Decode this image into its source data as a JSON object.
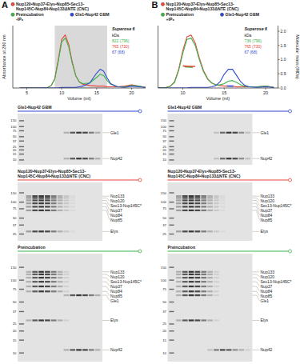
{
  "chart_data": [
    {
      "type": "line",
      "x_label": "Volume (ml)",
      "y_label": "Absorbance at 280 nm",
      "xlim": [
        3,
        22
      ],
      "xticks": [
        5,
        10,
        15,
        20
      ],
      "ylim": [
        0,
        1
      ],
      "shaded_range": [
        9,
        16.5
      ],
      "column": "Superose 6",
      "mass_table": {
        "header": "kDa",
        "rows": [
          {
            "label": "822 (796)",
            "color": "#3cb44b"
          },
          {
            "label": "765 (730)",
            "color": "#e8453c"
          },
          {
            "label": "67 (68)",
            "color": "#2f49d1"
          }
        ]
      },
      "x": [
        4,
        5,
        6,
        7,
        8,
        8.5,
        9,
        9.5,
        10,
        10.5,
        11,
        11.5,
        12,
        12.5,
        13,
        14,
        15,
        15.5,
        16,
        16.5,
        17,
        18,
        19,
        20,
        21,
        22
      ],
      "series": [
        {
          "name": "Nup120•Nup37•Elys•Nup85•Sec13-Nup145C•Nup84•Nup133ΔNTE (CNC)",
          "color": "#e8453c",
          "values": [
            0,
            0,
            0,
            0,
            0.01,
            0.04,
            0.15,
            0.45,
            0.78,
            0.85,
            0.7,
            0.42,
            0.2,
            0.1,
            0.06,
            0.04,
            0.03,
            0.03,
            0.03,
            0.02,
            0.02,
            0.02,
            0.03,
            0.05,
            0.03,
            0.01
          ]
        },
        {
          "name": "Preincubation -IP₆",
          "color": "#3cb44b",
          "values": [
            0,
            0,
            0,
            0,
            0.01,
            0.04,
            0.14,
            0.42,
            0.74,
            0.8,
            0.66,
            0.4,
            0.2,
            0.1,
            0.07,
            0.08,
            0.17,
            0.22,
            0.2,
            0.12,
            0.06,
            0.02,
            0.02,
            0.04,
            0.03,
            0.01
          ]
        },
        {
          "name": "Gle1•Nup42 GBM",
          "color": "#2f49d1",
          "values": [
            0,
            0,
            0,
            0,
            0,
            0,
            0,
            0,
            0.01,
            0.01,
            0.01,
            0.01,
            0.01,
            0.02,
            0.03,
            0.08,
            0.24,
            0.3,
            0.27,
            0.16,
            0.07,
            0.02,
            0.01,
            0.03,
            0.02,
            0.01
          ]
        }
      ]
    },
    {
      "type": "line",
      "x_label": "Volume (ml)",
      "y2_label": "Molecular mass (MDa)",
      "xlim": [
        7,
        21.5
      ],
      "xticks": [
        10,
        15,
        20
      ],
      "ylim": [
        0,
        1
      ],
      "y2lim": [
        0,
        2.2
      ],
      "y2ticks": [
        {
          "value": 0,
          "label": "0.0"
        },
        {
          "value": 0.5,
          "label": "0.5"
        },
        {
          "value": 1,
          "label": "1.0"
        },
        {
          "value": 1.5,
          "label": "1.5"
        },
        {
          "value": 2,
          "label": "2.0"
        }
      ],
      "column": "Superose 6",
      "mass_table": {
        "header": "kDa",
        "rows": [
          {
            "label": "736 (796)",
            "color": "#3cb44b"
          },
          {
            "label": "765 (730)",
            "color": "#e8453c"
          },
          {
            "label": "67 (68)",
            "color": "#2f49d1"
          }
        ]
      },
      "x": [
        7,
        8,
        8.5,
        9,
        9.5,
        10,
        10.5,
        11,
        11.5,
        12,
        12.5,
        13,
        13.5,
        14,
        14.5,
        15,
        15.5,
        16,
        16.5,
        17,
        17.5,
        18,
        19,
        20,
        21
      ],
      "series": [
        {
          "name": "Nup120•Nup37•Elys•Nup85•Sec13-Nup145C•Nup84•Nup133ΔNTE (CNC)",
          "color": "#e8453c",
          "values": [
            0,
            0.01,
            0.03,
            0.1,
            0.3,
            0.6,
            0.82,
            0.85,
            0.72,
            0.48,
            0.28,
            0.15,
            0.08,
            0.05,
            0.04,
            0.03,
            0.03,
            0.03,
            0.02,
            0.02,
            0.02,
            0.02,
            0.02,
            0.03,
            0.01
          ]
        },
        {
          "name": "Preincubation +IP₆",
          "color": "#3cb44b",
          "values": [
            0,
            0.01,
            0.03,
            0.09,
            0.28,
            0.56,
            0.78,
            0.8,
            0.68,
            0.45,
            0.26,
            0.14,
            0.08,
            0.05,
            0.05,
            0.07,
            0.11,
            0.12,
            0.09,
            0.05,
            0.03,
            0.02,
            0.02,
            0.03,
            0.01
          ]
        },
        {
          "name": "Gle1•Nup42 GBM",
          "color": "#2f49d1",
          "values": [
            0,
            0,
            0,
            0,
            0,
            0,
            0,
            0.01,
            0.01,
            0.01,
            0.01,
            0.01,
            0.02,
            0.04,
            0.1,
            0.22,
            0.3,
            0.3,
            0.2,
            0.1,
            0.04,
            0.02,
            0.01,
            0.02,
            0.01
          ]
        }
      ],
      "mass_traces": [
        {
          "color": "#3cb44b",
          "axis": "y2",
          "x": [
            10.2,
            10.7,
            11.2
          ],
          "values": [
            0.75,
            0.74,
            0.73
          ]
        },
        {
          "color": "#e8453c",
          "axis": "y2",
          "x": [
            10,
            10.5,
            11,
            11.5
          ],
          "values": [
            0.78,
            0.77,
            0.76,
            0.76
          ]
        },
        {
          "color": "#2f49d1",
          "axis": "y2",
          "x": [
            15.3,
            15.7,
            16.1
          ],
          "values": [
            0.07,
            0.067,
            0.066
          ]
        }
      ]
    }
  ],
  "panels": [
    {
      "label": "A",
      "gels": [
        {
          "title": "Gle1•Nup42 GBM",
          "color": "#2f49d1",
          "log": true,
          "ylim": [
            8,
            220
          ],
          "yticks": [
            150,
            100,
            75,
            50,
            37,
            25,
            20,
            15,
            10
          ],
          "groups": [
            {
              "intensities": [
                0,
                0,
                0,
                0,
                0,
                0,
                0.3,
                0.8,
                1,
                0.9,
                0.6,
                0.3
              ],
              "bands": [
                {
                  "label": "Gle1",
                  "mw": 66
                },
                {
                  "label": "Nup42",
                  "mw": 11
                }
              ]
            }
          ]
        },
        {
          "title": "Nup120•Nup37•Elys•Nup85•Sec13-Nup145C•Nup84•Nup133ΔNTE (CNC)",
          "color": "#e8453c",
          "log": true,
          "ylim": [
            20,
            220
          ],
          "yticks": [
            150,
            100,
            75,
            50,
            37,
            25
          ],
          "groups": [
            {
              "intensities": [
                0.4,
                0.9,
                1,
                0.9,
                0.6,
                0.3,
                0.15,
                0.05,
                0,
                0,
                0,
                0
              ],
              "bands": [
                {
                  "label": "Nup133",
                  "mw": 130
                },
                {
                  "label": "Nup120",
                  "mw": 120
                },
                {
                  "label": "Sec13-Nup145C*",
                  "mw": 108
                },
                {
                  "label": "Nup37",
                  "mw": 95
                },
                {
                  "label": "Nup84",
                  "mw": 82
                },
                {
                  "label": "Nup85",
                  "mw": 70
                },
                {
                  "label": "Elys",
                  "mw": 28
                }
              ]
            }
          ]
        },
        {
          "title": "Preincubation",
          "color": "#3cb44b",
          "log": true,
          "ylim": [
            8,
            220
          ],
          "yticks": [
            150,
            100,
            75,
            50,
            37,
            25,
            20,
            15,
            10
          ],
          "groups": [
            {
              "intensities": [
                0.3,
                0.8,
                1,
                0.9,
                0.6,
                0.3,
                0.1,
                0,
                0,
                0,
                0,
                0
              ],
              "bands": [
                {
                  "label": "Nup133",
                  "mw": 130
                },
                {
                  "label": "Nup120",
                  "mw": 120
                },
                {
                  "label": "Sec13-Nup145C*",
                  "mw": 108
                },
                {
                  "label": "Nup37",
                  "mw": 95
                },
                {
                  "label": "Nup84",
                  "mw": 82
                },
                {
                  "label": "Nup85",
                  "mw": 70
                },
                {
                  "label": "Elys",
                  "mw": 28
                }
              ]
            },
            {
              "intensities": [
                0,
                0,
                0,
                0,
                0,
                0,
                0.3,
                0.8,
                1,
                0.9,
                0.6,
                0.3
              ],
              "bands": [
                {
                  "label": "Gle1",
                  "mw": 62
                },
                {
                  "label": "Nup42",
                  "mw": 11
                }
              ]
            }
          ]
        }
      ]
    },
    {
      "label": "B",
      "gels": [
        {
          "title": "Gle1•Nup42 GBM",
          "color": "#2f49d1",
          "log": true,
          "ylim": [
            8,
            220
          ],
          "yticks": [
            150,
            100,
            75,
            50,
            37,
            25,
            20,
            15,
            10
          ],
          "groups": [
            {
              "intensities": [
                0,
                0,
                0,
                0,
                0,
                0,
                0.2,
                0.7,
                1,
                0.9,
                0.5,
                0.2
              ],
              "bands": [
                {
                  "label": "Gle1",
                  "mw": 66
                },
                {
                  "label": "Nup42",
                  "mw": 11
                }
              ]
            }
          ]
        },
        {
          "title": "Nup120•Nup37•Elys•Nup85•Sec13-Nup145C•Nup84•Nup133ΔNTE (CNC)",
          "color": "#e8453c",
          "log": true,
          "ylim": [
            20,
            220
          ],
          "yticks": [
            150,
            100,
            75,
            50,
            37,
            25
          ],
          "groups": [
            {
              "intensities": [
                0.4,
                0.9,
                1,
                0.9,
                0.6,
                0.3,
                0.15,
                0.05,
                0,
                0,
                0,
                0
              ],
              "bands": [
                {
                  "label": "Nup133",
                  "mw": 130
                },
                {
                  "label": "Nup120",
                  "mw": 120
                },
                {
                  "label": "Sec13-Nup145C*",
                  "mw": 108
                },
                {
                  "label": "Nup37",
                  "mw": 95
                },
                {
                  "label": "Nup84",
                  "mw": 82
                },
                {
                  "label": "Nup85",
                  "mw": 70
                },
                {
                  "label": "Elys",
                  "mw": 28
                }
              ]
            }
          ]
        },
        {
          "title": "Preincubation",
          "color": "#3cb44b",
          "log": true,
          "ylim": [
            8,
            220
          ],
          "yticks": [
            150,
            100,
            75,
            50,
            37,
            25,
            20,
            15,
            10
          ],
          "groups": [
            {
              "intensities": [
                0.3,
                0.8,
                1,
                0.9,
                0.6,
                0.3,
                0.1,
                0,
                0,
                0,
                0,
                0
              ],
              "bands": [
                {
                  "label": "Nup133",
                  "mw": 130
                },
                {
                  "label": "Nup120",
                  "mw": 120
                },
                {
                  "label": "Sec13-Nup145C*",
                  "mw": 108
                },
                {
                  "label": "Nup37",
                  "mw": 95
                },
                {
                  "label": "Nup84",
                  "mw": 82
                },
                {
                  "label": "Nup85",
                  "mw": 70
                },
                {
                  "label": "Gle1",
                  "mw": 62
                },
                {
                  "label": "Elys",
                  "mw": 28
                }
              ]
            },
            {
              "intensities": [
                0,
                0,
                0,
                0,
                0,
                0.2,
                0.6,
                0.9,
                0.8,
                0.5,
                0.3,
                0.1
              ],
              "bands": [
                {
                  "label": "Nup42",
                  "mw": 11
                }
              ]
            }
          ]
        }
      ]
    }
  ]
}
